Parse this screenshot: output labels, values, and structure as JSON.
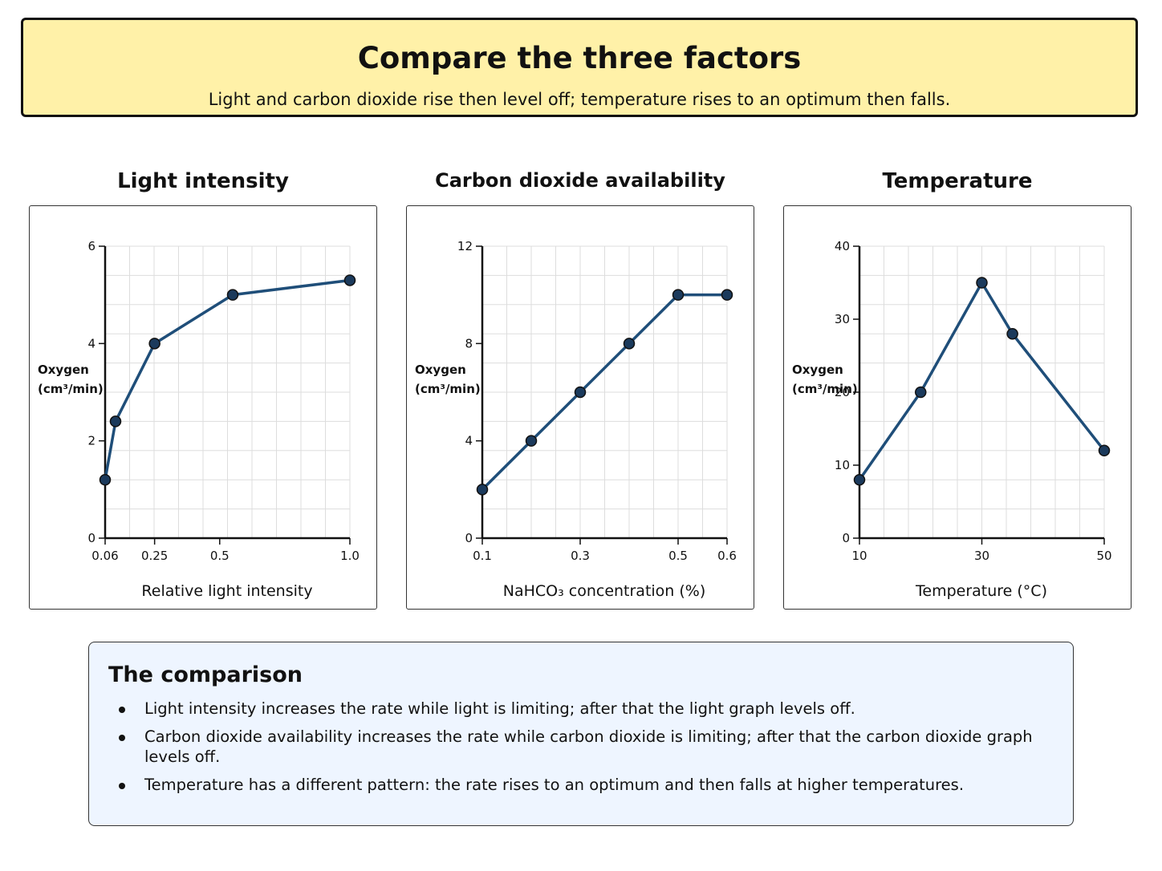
{
  "header": {
    "title": "Compare the three factors",
    "subtitle": "Light and carbon dioxide rise then level off; temperature rises to an optimum then falls."
  },
  "colors": {
    "header_bg": "#fff1a8",
    "line": "#1f4e79",
    "marker": "#1b3a5c",
    "grid": "#dddddd",
    "summary_bg": "#eef5ff"
  },
  "chart_data": [
    {
      "type": "line",
      "title": "Light intensity",
      "xlabel": "Relative light intensity",
      "ylabel": "Oxygen (cm³/min)",
      "ylabel_lines": [
        "Oxygen",
        "(cm³/min)"
      ],
      "x": [
        0.06,
        0.1,
        0.25,
        0.55,
        1.0
      ],
      "y": [
        1.2,
        2.4,
        4.0,
        5.0,
        5.3
      ],
      "xlim": [
        0.06,
        1.0
      ],
      "ylim": [
        0,
        6
      ],
      "xticks": [
        0.06,
        0.25,
        0.5,
        1.0
      ],
      "xtick_labels": [
        "0.06",
        "0.25",
        "0.5",
        "1.0"
      ],
      "yticks": [
        0,
        2,
        4,
        6
      ],
      "ytick_labels": [
        "0",
        "2",
        "4",
        "6"
      ],
      "grid": true
    },
    {
      "type": "line",
      "title": "Carbon dioxide availability",
      "xlabel": "NaHCO₃ concentration (%)",
      "ylabel": "Oxygen (cm³/min)",
      "ylabel_lines": [
        "Oxygen",
        "(cm³/min)"
      ],
      "x": [
        0.1,
        0.2,
        0.3,
        0.4,
        0.5,
        0.6
      ],
      "y": [
        2,
        4,
        6,
        8,
        10,
        10
      ],
      "xlim": [
        0.1,
        0.6
      ],
      "ylim": [
        0,
        12
      ],
      "xticks": [
        0.1,
        0.3,
        0.5,
        0.6
      ],
      "xtick_labels": [
        "0.1",
        "0.3",
        "0.5",
        "0.6"
      ],
      "yticks": [
        0,
        4,
        8,
        12
      ],
      "ytick_labels": [
        "0",
        "4",
        "8",
        "12"
      ],
      "grid": true
    },
    {
      "type": "line",
      "title": "Temperature",
      "xlabel": "Temperature (°C)",
      "ylabel": "Oxygen (cm³/min)",
      "ylabel_lines": [
        "Oxygen",
        "(cm³/min)"
      ],
      "x": [
        10,
        20,
        30,
        35,
        50
      ],
      "y": [
        8,
        20,
        35,
        28,
        12
      ],
      "xlim": [
        10,
        50
      ],
      "ylim": [
        0,
        40
      ],
      "xticks": [
        10,
        30,
        50
      ],
      "xtick_labels": [
        "10",
        "30",
        "50"
      ],
      "yticks": [
        0,
        10,
        20,
        30,
        40
      ],
      "ytick_labels": [
        "0",
        "10",
        "20",
        "30",
        "40"
      ],
      "grid": true
    }
  ],
  "summary": {
    "title": "The comparison",
    "items": [
      "Light intensity increases the rate while light is limiting; after that the light graph levels off.",
      "Carbon dioxide availability increases the rate while carbon dioxide is limiting; after that the carbon dioxide graph levels off.",
      "Temperature has a different pattern: the rate rises to an optimum and then falls at higher temperatures."
    ]
  }
}
